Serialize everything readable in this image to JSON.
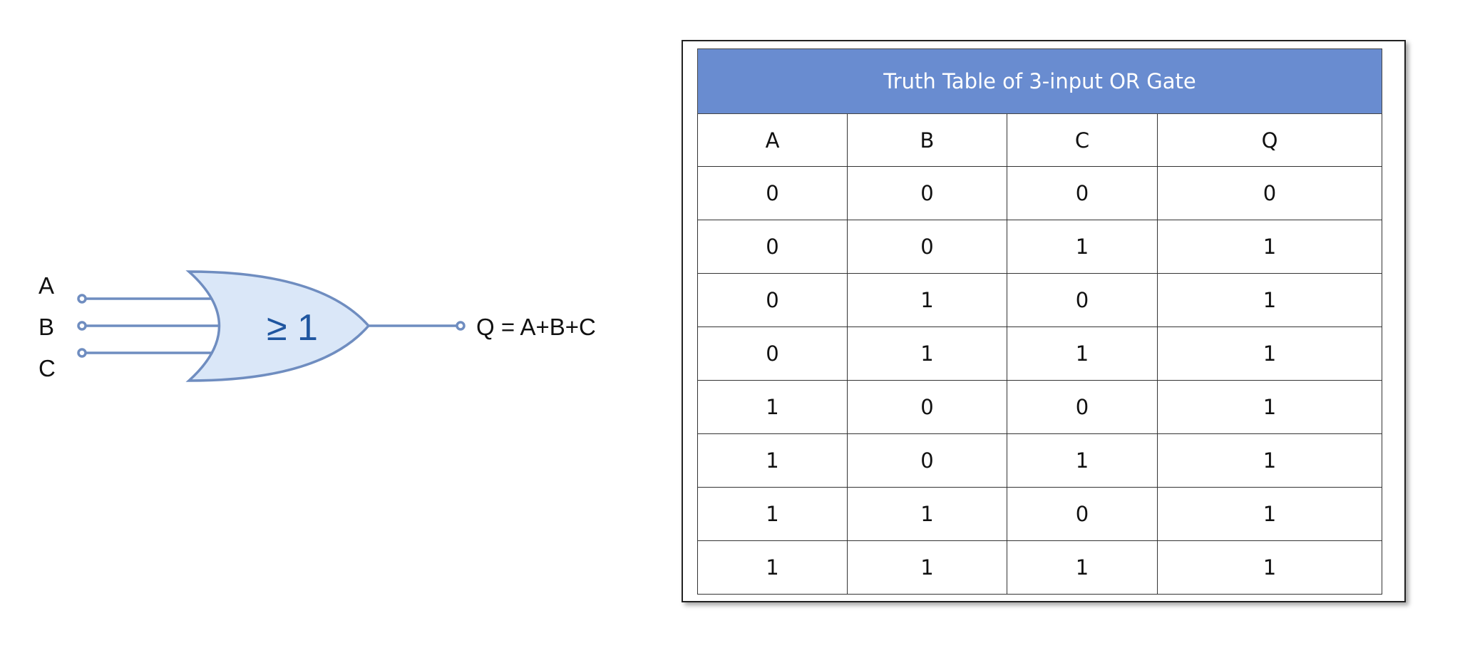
{
  "gate": {
    "inputs": [
      "A",
      "B",
      "C"
    ],
    "symbol": "≥ 1",
    "output_label": "Q = A+B+C",
    "fill_color": "#dae7f8",
    "stroke_color": "#6f8dc0",
    "symbol_color": "#1f56a0"
  },
  "table": {
    "title": "Truth Table of 3-input OR Gate",
    "header_color": "#698cd0",
    "columns": [
      "A",
      "B",
      "C",
      "Q"
    ],
    "rows": [
      [
        "0",
        "0",
        "0",
        "0"
      ],
      [
        "0",
        "0",
        "1",
        "1"
      ],
      [
        "0",
        "1",
        "0",
        "1"
      ],
      [
        "0",
        "1",
        "1",
        "1"
      ],
      [
        "1",
        "0",
        "0",
        "1"
      ],
      [
        "1",
        "0",
        "1",
        "1"
      ],
      [
        "1",
        "1",
        "0",
        "1"
      ],
      [
        "1",
        "1",
        "1",
        "1"
      ]
    ]
  }
}
